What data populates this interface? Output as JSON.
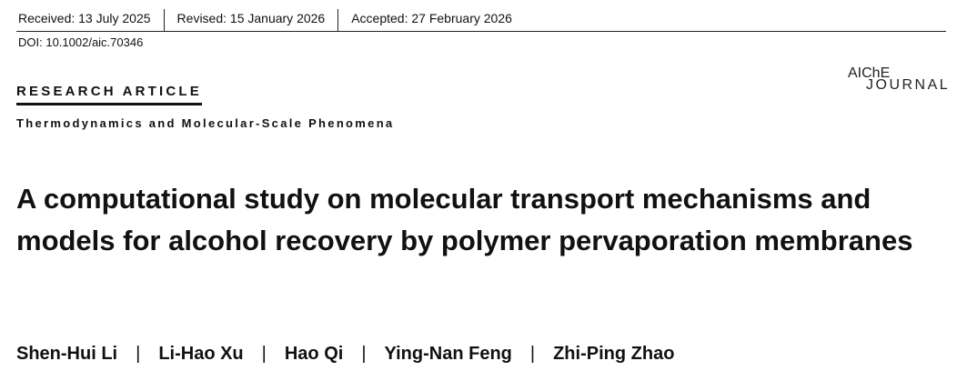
{
  "dates": {
    "received": "Received: 13 July 2025",
    "revised": "Revised: 15 January 2026",
    "accepted": "Accepted: 27 February 2026"
  },
  "doi": "DOI: 10.1002/aic.70346",
  "article_type": "RESEARCH ARTICLE",
  "section": "Thermodynamics and Molecular-Scale Phenomena",
  "journal_logo": {
    "line1": "AIChE",
    "line2": "JOURNAL"
  },
  "title": "A computational study on molecular transport mechanisms and models for alcohol recovery by polymer pervaporation membranes",
  "authors": [
    "Shen-Hui Li",
    "Li-Hao Xu",
    "Hao Qi",
    "Ying-Nan Feng",
    "Zhi-Ping Zhao"
  ],
  "author_separator": "|"
}
